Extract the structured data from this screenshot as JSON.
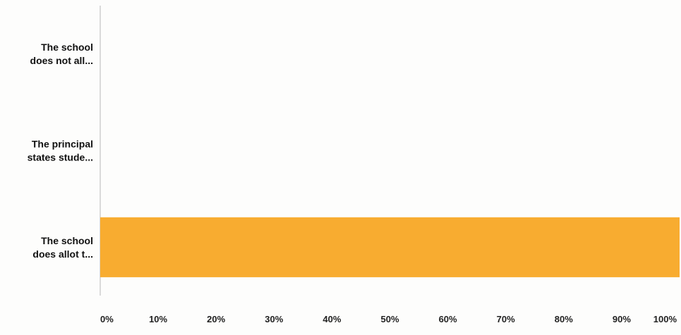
{
  "chart_data": {
    "type": "bar",
    "orientation": "horizontal",
    "categories": [
      [
        "The school",
        "does not all..."
      ],
      [
        "The principal",
        "states stude..."
      ],
      [
        "The school",
        "does allot t..."
      ]
    ],
    "values": [
      0,
      0,
      100
    ],
    "xlim": [
      0,
      100
    ],
    "xticks": [
      "0%",
      "10%",
      "20%",
      "30%",
      "40%",
      "50%",
      "60%",
      "70%",
      "80%",
      "90%",
      "100%"
    ],
    "bar_color": "#f8ac30",
    "axis_color": "#cfcfcf",
    "grid": false,
    "legend": "none"
  }
}
